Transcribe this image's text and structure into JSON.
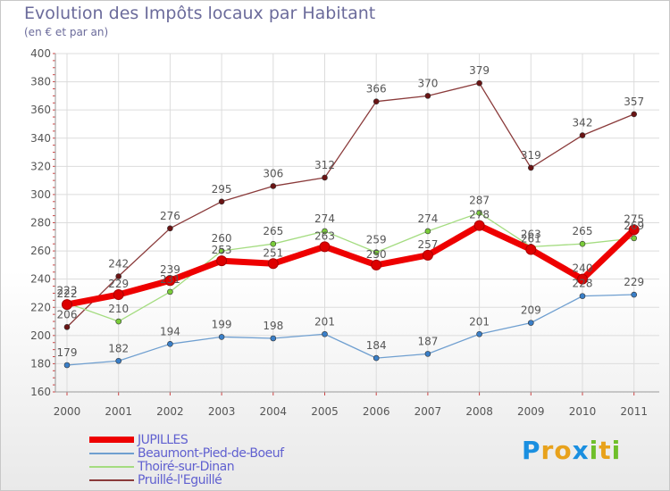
{
  "header": {
    "title": "Evolution des Impôts locaux par Habitant",
    "subtitle": "(en € et par an)"
  },
  "brand": {
    "letters": [
      "P",
      "r",
      "o",
      "x",
      "i",
      "t",
      "i"
    ],
    "colors": [
      "#1a8fe0",
      "#e8a21c",
      "#e8a21c",
      "#1a8fe0",
      "#6fbf2a",
      "#e8a21c",
      "#6fbf2a"
    ]
  },
  "chart_data": {
    "type": "line",
    "title": "Evolution des Impôts locaux par Habitant",
    "subtitle": "(en € et par an)",
    "xlabel": "",
    "ylabel": "",
    "categories": [
      "2000",
      "2001",
      "2002",
      "2003",
      "2004",
      "2005",
      "2006",
      "2007",
      "2008",
      "2009",
      "2010",
      "2011"
    ],
    "ylim": [
      160,
      400
    ],
    "yticks": [
      160,
      180,
      200,
      220,
      240,
      260,
      280,
      300,
      320,
      340,
      360,
      380,
      400
    ],
    "grid": true,
    "legend_position": "bottom-left",
    "series": [
      {
        "name": "JUPILLES",
        "color": "#ee0000",
        "marker": "#dd0000",
        "width": 7,
        "label_dy": -8,
        "values": [
          222,
          229,
          239,
          253,
          251,
          263,
          250,
          257,
          278,
          261,
          240,
          275
        ]
      },
      {
        "name": "Beaumont-Pied-de-Boeuf",
        "color": "#6f9fd0",
        "marker": "#3a7fc8",
        "width": 1.3,
        "label_dy": -10,
        "values": [
          179,
          182,
          194,
          199,
          198,
          201,
          184,
          187,
          201,
          209,
          228,
          229
        ]
      },
      {
        "name": "Thoiré-sur-Dinan",
        "color": "#a4dc80",
        "marker": "#7acc3a",
        "width": 1.3,
        "label_dy": -10,
        "values": [
          223,
          210,
          231,
          260,
          265,
          274,
          259,
          274,
          287,
          263,
          265,
          269
        ]
      },
      {
        "name": "Pruillé-l'Eguillé",
        "color": "#8a3a3a",
        "marker": "#6a1414",
        "width": 1.3,
        "label_dy": -10,
        "values": [
          206,
          242,
          276,
          295,
          306,
          312,
          366,
          370,
          379,
          319,
          342,
          357
        ]
      }
    ]
  }
}
